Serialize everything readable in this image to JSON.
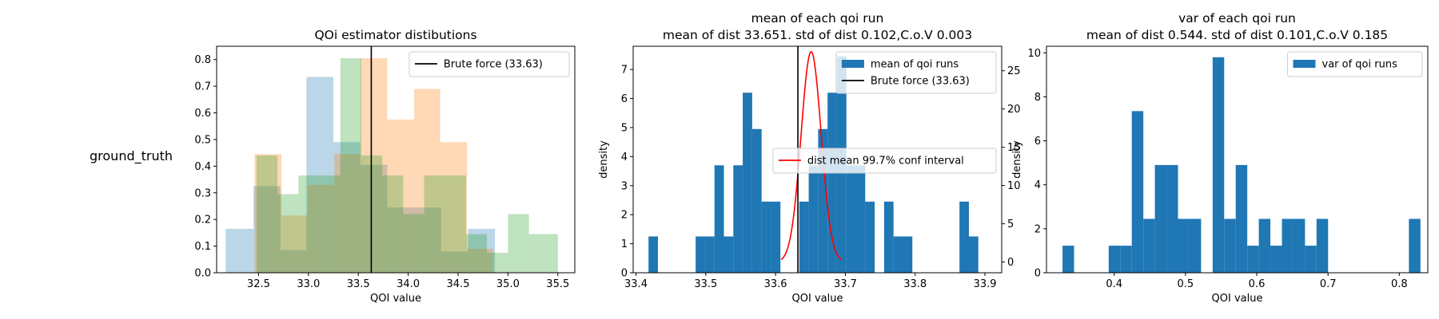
{
  "row_label": "ground_truth",
  "colors": {
    "blue": "#1f77b4",
    "orange": "#ff7f0e",
    "green": "#2ca02c",
    "red": "#ff0000",
    "black": "#000000"
  },
  "chart_data": [
    {
      "type": "histogram",
      "title": "QOi estimator distibutions",
      "xlabel": "QOI value",
      "ylabel": "",
      "xlim": [
        32.08,
        35.67
      ],
      "ylim": [
        0,
        0.85
      ],
      "xticks": [
        32.5,
        33.0,
        33.5,
        34.0,
        34.5,
        35.0,
        35.5
      ],
      "xtick_labels": [
        "32.5",
        "33.0",
        "33.5",
        "34.0",
        "34.5",
        "35.0",
        "35.5"
      ],
      "yticks": [
        0,
        0.1,
        0.2,
        0.3,
        0.4,
        0.5,
        0.6,
        0.7,
        0.8
      ],
      "ytick_labels": [
        "0.0",
        "0.1",
        "0.2",
        "0.3",
        "0.4",
        "0.5",
        "0.6",
        "0.7",
        "0.8"
      ],
      "series": [
        {
          "color": "blue",
          "alpha": 0.3,
          "bins": [
            [
              32.17,
              32.45,
              0.165
            ],
            [
              32.45,
              32.72,
              0.325
            ],
            [
              32.72,
              32.98,
              0.085
            ],
            [
              32.98,
              33.25,
              0.735
            ],
            [
              33.25,
              33.52,
              0.49
            ],
            [
              33.52,
              33.79,
              0.405
            ],
            [
              33.79,
              34.06,
              0.245
            ],
            [
              34.06,
              34.33,
              0.245
            ],
            [
              34.33,
              34.6,
              0.08
            ],
            [
              34.6,
              34.87,
              0.165
            ]
          ]
        },
        {
          "color": "orange",
          "alpha": 0.3,
          "bins": [
            [
              32.46,
              32.73,
              0.445
            ],
            [
              32.73,
              32.99,
              0.215
            ],
            [
              32.99,
              33.26,
              0.33
            ],
            [
              33.26,
              33.52,
              0.445
            ],
            [
              33.52,
              33.79,
              0.805
            ],
            [
              33.79,
              34.06,
              0.575
            ],
            [
              34.06,
              34.32,
              0.69
            ],
            [
              34.32,
              34.59,
              0.49
            ],
            [
              34.59,
              34.85,
              0.09
            ]
          ]
        },
        {
          "color": "green",
          "alpha": 0.3,
          "bins": [
            [
              32.48,
              32.69,
              0.44
            ],
            [
              32.69,
              32.9,
              0.295
            ],
            [
              32.9,
              33.11,
              0.365
            ],
            [
              33.11,
              33.32,
              0.365
            ],
            [
              33.32,
              33.53,
              0.805
            ],
            [
              33.53,
              33.74,
              0.44
            ],
            [
              33.74,
              33.95,
              0.365
            ],
            [
              33.95,
              34.16,
              0.22
            ],
            [
              34.16,
              34.37,
              0.365
            ],
            [
              34.37,
              34.58,
              0.365
            ],
            [
              34.58,
              34.79,
              0.145
            ],
            [
              34.79,
              35.0,
              0.075
            ],
            [
              35.0,
              35.21,
              0.22
            ],
            [
              35.21,
              35.5,
              0.145
            ]
          ]
        }
      ],
      "vlines": [
        {
          "x": 33.63,
          "color": "black",
          "label": "Brute force (33.63)"
        }
      ],
      "legend": {
        "placement": "top-right",
        "entries": [
          {
            "label": "Brute force (33.63)",
            "kind": "line",
            "color": "black"
          }
        ]
      }
    },
    {
      "type": "histogram",
      "title": "mean of each qoi run",
      "subtitle": "mean of dist 33.651. std of dist 0.102,C.o.V 0.003",
      "xlabel": "QOI value",
      "ylabel": "density",
      "xlim": [
        33.396,
        33.924
      ],
      "ylim": [
        0,
        7.8
      ],
      "xticks": [
        33.4,
        33.5,
        33.6,
        33.7,
        33.8,
        33.9
      ],
      "xtick_labels": [
        "33.4",
        "33.5",
        "33.6",
        "33.7",
        "33.8",
        "33.9"
      ],
      "yticks": [
        0,
        1,
        2,
        3,
        4,
        5,
        6,
        7
      ],
      "ytick_labels": [
        "0",
        "1",
        "2",
        "3",
        "4",
        "5",
        "6",
        "7"
      ],
      "y2label": "",
      "y2lim": [
        -1.4,
        28.2
      ],
      "y2ticks": [
        0,
        5,
        10,
        15,
        20,
        25
      ],
      "y2tick_labels": [
        "0",
        "5",
        "10",
        "15",
        "20",
        "25"
      ],
      "series": [
        {
          "color": "blue",
          "alpha": 1,
          "bins": [
            [
              33.418,
              33.4315,
              1.25
            ],
            [
              33.4855,
              33.499,
              1.25
            ],
            [
              33.499,
              33.5125,
              1.25
            ],
            [
              33.5125,
              33.526,
              3.7
            ],
            [
              33.526,
              33.5395,
              1.25
            ],
            [
              33.5395,
              33.553,
              3.7
            ],
            [
              33.553,
              33.5665,
              6.2
            ],
            [
              33.5665,
              33.58,
              4.95
            ],
            [
              33.58,
              33.5935,
              2.45
            ],
            [
              33.5935,
              33.607,
              2.45
            ],
            [
              33.634,
              33.6475,
              2.45
            ],
            [
              33.6475,
              33.661,
              3.7
            ],
            [
              33.661,
              33.6745,
              4.95
            ],
            [
              33.6745,
              33.688,
              6.2
            ],
            [
              33.688,
              33.7015,
              7.45
            ],
            [
              33.7015,
              33.715,
              3.7
            ],
            [
              33.715,
              33.7285,
              3.7
            ],
            [
              33.7285,
              33.742,
              2.45
            ],
            [
              33.7555,
              33.769,
              2.45
            ],
            [
              33.769,
              33.7825,
              1.25
            ],
            [
              33.7825,
              33.796,
              1.25
            ],
            [
              33.8635,
              33.877,
              2.45
            ],
            [
              33.877,
              33.8905,
              1.25
            ]
          ]
        }
      ],
      "vlines": [
        {
          "x": 33.632,
          "color": "black",
          "label": "Brute force (33.63)"
        }
      ],
      "curve": {
        "label": "dist mean 99.7% conf interval",
        "color": "red",
        "mean": 33.651,
        "sd": 0.0144,
        "peak": 27.5,
        "x_range": [
          33.608,
          33.694
        ],
        "axis": "y2"
      },
      "legend": {
        "placement": "top-right",
        "entries": [
          {
            "label": "mean of qoi runs",
            "kind": "patch",
            "color": "blue"
          },
          {
            "label": "Brute force (33.63)",
            "kind": "line",
            "color": "black"
          }
        ]
      },
      "legend2": {
        "placement": "center-right",
        "entries": [
          {
            "label": "dist mean 99.7% conf interval",
            "kind": "line",
            "color": "red"
          }
        ]
      }
    },
    {
      "type": "histogram",
      "title": "var of each qoi run",
      "subtitle": "mean of dist 0.544. std of dist 0.101,C.o.V 0.185",
      "xlabel": "QOI value",
      "ylabel": "density",
      "xlim": [
        0.305,
        0.84
      ],
      "ylim": [
        0,
        10.3
      ],
      "xticks": [
        0.4,
        0.5,
        0.6,
        0.7,
        0.8
      ],
      "xtick_labels": [
        "0.4",
        "0.5",
        "0.6",
        "0.7",
        "0.8"
      ],
      "yticks": [
        0,
        2,
        4,
        6,
        8,
        10
      ],
      "ytick_labels": [
        "0",
        "2",
        "4",
        "6",
        "8",
        "10"
      ],
      "series": [
        {
          "color": "blue",
          "alpha": 1,
          "bins": [
            [
              0.3275,
              0.3437,
              1.23
            ],
            [
              0.3923,
              0.4085,
              1.23
            ],
            [
              0.4085,
              0.4247,
              1.23
            ],
            [
              0.4247,
              0.4409,
              7.35
            ],
            [
              0.4409,
              0.4571,
              2.45
            ],
            [
              0.4571,
              0.4733,
              4.9
            ],
            [
              0.4733,
              0.4895,
              4.9
            ],
            [
              0.4895,
              0.5057,
              2.45
            ],
            [
              0.5057,
              0.5219,
              2.45
            ],
            [
              0.5381,
              0.5543,
              9.8
            ],
            [
              0.5543,
              0.5705,
              2.45
            ],
            [
              0.5705,
              0.5867,
              4.9
            ],
            [
              0.5867,
              0.6029,
              1.23
            ],
            [
              0.6029,
              0.6191,
              2.45
            ],
            [
              0.6191,
              0.6353,
              1.23
            ],
            [
              0.6353,
              0.6515,
              2.45
            ],
            [
              0.6515,
              0.6677,
              2.45
            ],
            [
              0.6677,
              0.6839,
              1.23
            ],
            [
              0.6839,
              0.7001,
              2.45
            ],
            [
              0.8135,
              0.8297,
              2.45
            ]
          ]
        }
      ],
      "vlines": [],
      "legend": {
        "placement": "top-right",
        "entries": [
          {
            "label": "var of qoi runs",
            "kind": "patch",
            "color": "blue"
          }
        ]
      }
    }
  ]
}
